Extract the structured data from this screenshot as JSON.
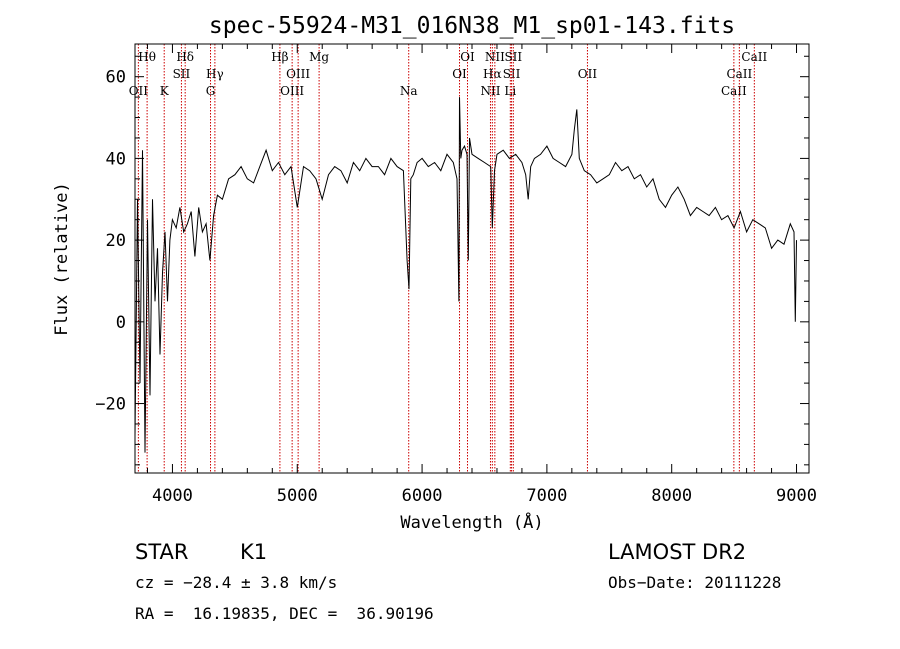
{
  "chart_data": {
    "type": "line",
    "title": "spec-55924-M31_016N38_M1_sp01-143.fits",
    "xlabel": "Wavelength (Å)",
    "ylabel": "Flux (relative)",
    "xlim": [
      3700,
      9100
    ],
    "ylim": [
      -37,
      68
    ],
    "x_ticks": [
      4000,
      5000,
      6000,
      7000,
      8000,
      9000
    ],
    "y_ticks": [
      -20,
      0,
      20,
      40,
      60
    ],
    "grid": false,
    "series": [
      {
        "x": [
          3700,
          3720,
          3740,
          3760,
          3780,
          3800,
          3820,
          3840,
          3860,
          3880,
          3900,
          3920,
          3940,
          3960,
          3980,
          4000,
          4030,
          4060,
          4090,
          4120,
          4150,
          4180,
          4210,
          4240,
          4270,
          4300,
          4330,
          4360,
          4400,
          4450,
          4500,
          4550,
          4600,
          4650,
          4700,
          4750,
          4800,
          4850,
          4900,
          4950,
          5000,
          5050,
          5100,
          5150,
          5200,
          5250,
          5300,
          5350,
          5400,
          5450,
          5500,
          5550,
          5600,
          5650,
          5700,
          5750,
          5800,
          5850,
          5880,
          5895,
          5910,
          5930,
          5960,
          6000,
          6050,
          6100,
          6150,
          6200,
          6250,
          6280,
          6295,
          6300,
          6310,
          6320,
          6340,
          6360,
          6370,
          6380,
          6400,
          6450,
          6500,
          6550,
          6563,
          6580,
          6600,
          6650,
          6700,
          6750,
          6800,
          6830,
          6850,
          6870,
          6900,
          6950,
          7000,
          7050,
          7100,
          7150,
          7200,
          7220,
          7240,
          7260,
          7300,
          7350,
          7400,
          7450,
          7500,
          7550,
          7600,
          7650,
          7700,
          7750,
          7800,
          7850,
          7900,
          7950,
          8000,
          8050,
          8100,
          8150,
          8200,
          8250,
          8300,
          8350,
          8400,
          8450,
          8500,
          8550,
          8600,
          8650,
          8700,
          8750,
          8800,
          8850,
          8900,
          8950,
          8980,
          8990,
          9000
        ],
        "y": [
          -28,
          30,
          -15,
          42,
          -32,
          25,
          -18,
          30,
          5,
          18,
          -8,
          12,
          22,
          5,
          20,
          25,
          23,
          28,
          22,
          24,
          27,
          16,
          28,
          22,
          24,
          15,
          26,
          31,
          30,
          35,
          36,
          38,
          35,
          34,
          38,
          42,
          37,
          39,
          36,
          38,
          28,
          38,
          37,
          35,
          30,
          36,
          38,
          37,
          34,
          39,
          37,
          40,
          38,
          38,
          36,
          40,
          38,
          37,
          15,
          8,
          35,
          36,
          39,
          40,
          38,
          39,
          37,
          41,
          39,
          35,
          5,
          55,
          40,
          42,
          43,
          41,
          15,
          45,
          41,
          40,
          39,
          38,
          23,
          37,
          41,
          42,
          40,
          41,
          39,
          36,
          30,
          38,
          40,
          41,
          43,
          40,
          39,
          38,
          41,
          47,
          52,
          40,
          37,
          36,
          34,
          35,
          36,
          39,
          37,
          38,
          35,
          36,
          33,
          35,
          30,
          28,
          31,
          33,
          30,
          26,
          28,
          27,
          26,
          28,
          25,
          26,
          23,
          27,
          22,
          25,
          24,
          23,
          18,
          20,
          19,
          24,
          22,
          0,
          20
        ]
      }
    ],
    "line_ids": [
      {
        "wavelength": 3727,
        "row": 2,
        "label": "OII"
      },
      {
        "wavelength": 3797,
        "row": 0,
        "label": "Hθ"
      },
      {
        "wavelength": 3934,
        "row": 2,
        "label": "K"
      },
      {
        "wavelength": 4072,
        "row": 1,
        "label": "SII"
      },
      {
        "wavelength": 4102,
        "row": 0,
        "label": "Hδ"
      },
      {
        "wavelength": 4305,
        "row": 2,
        "label": "G"
      },
      {
        "wavelength": 4340,
        "row": 1,
        "label": "Hγ"
      },
      {
        "wavelength": 4861,
        "row": 0,
        "label": "Hβ"
      },
      {
        "wavelength": 4959,
        "row": 2,
        "label": "OIII"
      },
      {
        "wavelength": 5007,
        "row": 1,
        "label": "OIII"
      },
      {
        "wavelength": 5175,
        "row": 0,
        "label": "Mg"
      },
      {
        "wavelength": 5893,
        "row": 2,
        "label": "Na"
      },
      {
        "wavelength": 6300,
        "row": 1,
        "label": "OI"
      },
      {
        "wavelength": 6364,
        "row": 0,
        "label": "OI"
      },
      {
        "wavelength": 6548,
        "row": 2,
        "label": "NII"
      },
      {
        "wavelength": 6563,
        "row": 1,
        "label": "Hα"
      },
      {
        "wavelength": 6583,
        "row": 0,
        "label": "NII"
      },
      {
        "wavelength": 6707,
        "row": 2,
        "label": "Li"
      },
      {
        "wavelength": 6717,
        "row": 1,
        "label": "SII"
      },
      {
        "wavelength": 6731,
        "row": 0,
        "label": "SII"
      },
      {
        "wavelength": 7325,
        "row": 1,
        "label": "OII"
      },
      {
        "wavelength": 8498,
        "row": 2,
        "label": "CaII"
      },
      {
        "wavelength": 8542,
        "row": 1,
        "label": "CaII"
      },
      {
        "wavelength": 8662,
        "row": 0,
        "label": "CaII"
      }
    ],
    "line_color": "#cc0000",
    "spectrum_color": "#000000"
  },
  "info": {
    "class_label": "STAR",
    "subclass_label": "K1",
    "survey_label": "LAMOST DR2",
    "cz_text": "cz = −28.4 ± 3.8 km/s",
    "obs_date_text": "Obs−Date: 20111228",
    "radec_text": "RA =  16.19835, DEC =  36.90196"
  }
}
